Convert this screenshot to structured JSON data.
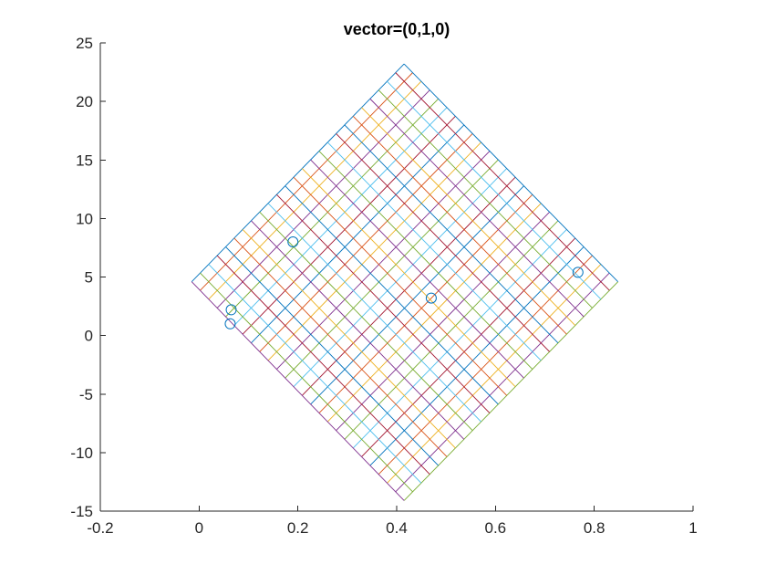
{
  "chart_data": {
    "type": "line",
    "title": "vector=(0,1,0)",
    "xlabel": "",
    "ylabel": "",
    "xlim": [
      -0.2,
      1
    ],
    "ylim": [
      -15,
      25
    ],
    "xticks": [
      -0.2,
      0,
      0.2,
      0.4,
      0.6,
      0.8,
      1
    ],
    "xtick_labels": [
      "-0.2",
      "0",
      "0.2",
      "0.4",
      "0.6",
      "0.8",
      "1"
    ],
    "yticks": [
      -15,
      -10,
      -5,
      0,
      5,
      10,
      15,
      20,
      25
    ],
    "ytick_labels": [
      "-15",
      "-10",
      "-5",
      "0",
      "5",
      "10",
      "15",
      "20",
      "25"
    ],
    "grid": false,
    "legend": "none",
    "mesh": {
      "corners": {
        "left": [
          -0.015,
          4.6
        ],
        "top": [
          0.415,
          23.2
        ],
        "right": [
          0.848,
          4.6
        ],
        "bottom": [
          0.415,
          -14.1
        ]
      },
      "lines_per_direction": 26,
      "colors": [
        "#0072BD",
        "#D95319",
        "#EDB120",
        "#7E2F8E",
        "#77AC30",
        "#4DBEEE",
        "#A2142F"
      ]
    },
    "points": {
      "marker": "circle",
      "color": "#0072BD",
      "x": [
        0.065,
        0.063,
        0.19,
        0.47,
        0.767
      ],
      "y": [
        2.2,
        1.0,
        8.0,
        3.2,
        5.4
      ]
    }
  }
}
